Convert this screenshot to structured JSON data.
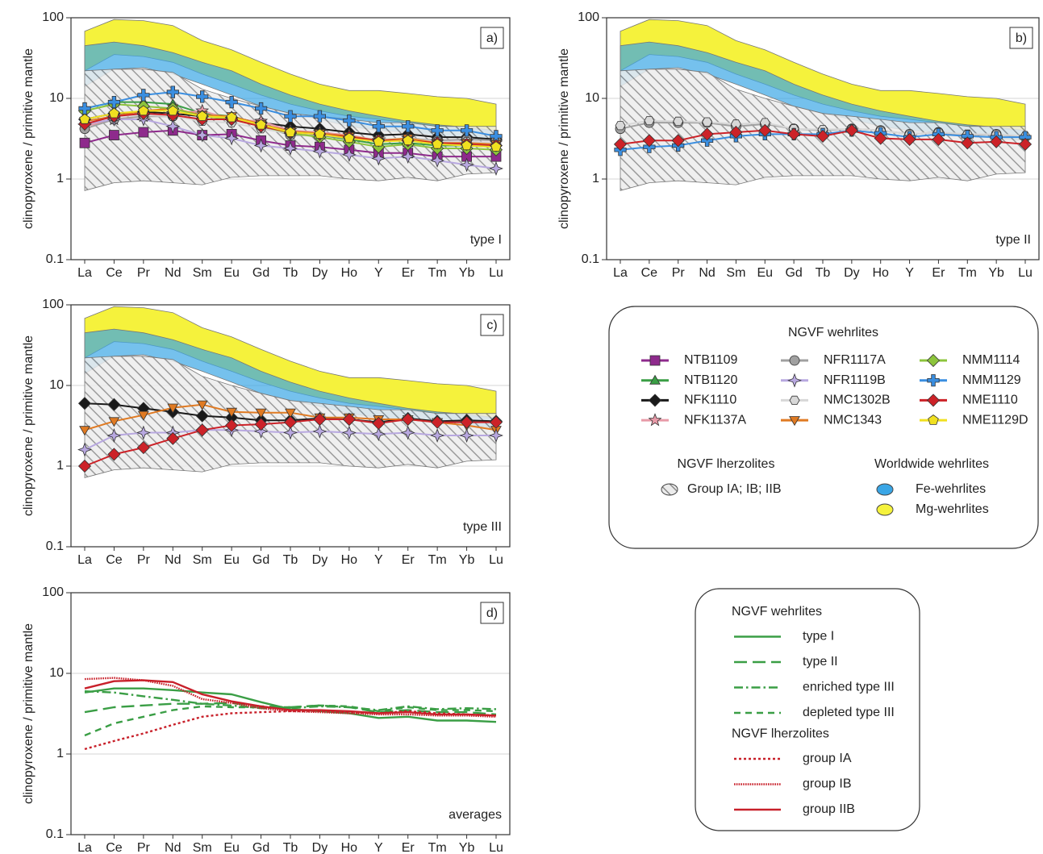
{
  "chart_data": [
    {
      "type": "line",
      "panel_label": "a)",
      "annotation": "type I",
      "ylabel": "clinopyroxene / primitive mantle",
      "categories": [
        "La",
        "Ce",
        "Pr",
        "Nd",
        "Sm",
        "Eu",
        "Gd",
        "Tb",
        "Dy",
        "Ho",
        "Y",
        "Er",
        "Tm",
        "Yb",
        "Lu"
      ],
      "log_scale": true,
      "ylim": [
        0.1,
        100
      ],
      "yticks": [
        0.1,
        1,
        10,
        100
      ],
      "grid": true,
      "areas": [
        {
          "name": "Mg-wehrlites",
          "color": "#f5f23c",
          "opacity": 1,
          "upper": [
            68,
            95,
            92,
            80,
            52,
            40,
            28,
            20,
            15,
            12.5,
            12.5,
            11.5,
            10.5,
            10,
            8.5
          ],
          "lower": [
            22,
            35,
            33,
            28,
            20,
            15,
            11,
            8.5,
            7,
            6,
            5.5,
            5,
            4.5,
            4.2,
            4
          ]
        },
        {
          "name": "Fe-wehrlites",
          "color": "#3aa6e6",
          "opacity": 0.7,
          "upper": [
            45,
            50,
            45,
            37,
            28,
            22,
            15,
            11,
            8.5,
            7,
            6,
            5.2,
            4.7,
            4.4,
            4
          ],
          "lower": [
            14,
            23,
            24,
            20,
            15,
            11,
            8,
            6.5,
            5.5,
            4.5,
            4,
            3.8,
            3.4,
            3.2,
            3
          ]
        },
        {
          "name": "Group IA; IB; IIB",
          "color": "#8a8a8a",
          "pattern": "hatch",
          "upper": [
            22,
            23,
            23,
            21,
            13,
            10,
            8,
            6.5,
            6,
            5.5,
            5,
            5,
            4.5,
            4.5,
            4.5
          ],
          "lower": [
            0.72,
            0.9,
            0.95,
            0.9,
            0.85,
            1.05,
            1.1,
            1.1,
            1.1,
            1,
            0.95,
            1.05,
            0.95,
            1.15,
            1.2
          ]
        }
      ],
      "legend": {
        "title": "NGVF wehrlites",
        "sections": [
          "NGVF lherzolites",
          "Worldwide wehrlites"
        ]
      },
      "series": [
        {
          "name": "NTB1109",
          "color": "#8e2a8c",
          "marker": "square",
          "values": [
            2.8,
            3.5,
            3.8,
            4.0,
            3.5,
            3.6,
            3.0,
            2.6,
            2.5,
            2.3,
            2.1,
            2.1,
            1.9,
            1.9,
            1.9
          ]
        },
        {
          "name": "NTB1120",
          "color": "#3a9e45",
          "marker": "triangle",
          "values": [
            7.5,
            9,
            9,
            8.5,
            6.5,
            6,
            4.8,
            3.8,
            3.5,
            3.1,
            2.7,
            2.8,
            2.6,
            2.6,
            2.5
          ]
        },
        {
          "name": "NFK1110",
          "color": "#1a1a1a",
          "marker": "diamond",
          "values": [
            5.5,
            6.5,
            6.8,
            6.5,
            6,
            5.8,
            5,
            4.5,
            4.2,
            3.8,
            3.5,
            3.6,
            3.3,
            3.3,
            3.1
          ]
        },
        {
          "name": "NFK1137A",
          "color": "#e89aa8",
          "marker": "star",
          "values": [
            4.5,
            5.5,
            6,
            6.5,
            7,
            5.5,
            5.2,
            4,
            3.8,
            3.5,
            3,
            3.2,
            2.9,
            2.9,
            2.8
          ]
        },
        {
          "name": "NFR1117A",
          "color": "#a0a0a0",
          "marker": "circle",
          "values": [
            4.2,
            5.5,
            6,
            6,
            5.5,
            5.5,
            4.5,
            3.5,
            3.5,
            3.2,
            3.0,
            3.2,
            3.0,
            3.1,
            3.0
          ]
        },
        {
          "name": "NFR1119B",
          "color": "#b8a8e0",
          "marker": "star4",
          "values": [
            4.8,
            5.5,
            5.5,
            4.5,
            3.5,
            3.2,
            2.6,
            2.4,
            2.2,
            2.0,
            1.8,
            1.9,
            1.7,
            1.5,
            1.35
          ]
        },
        {
          "name": "NMC1302B",
          "color": "#d8d8d8",
          "marker": "hexagon",
          "values": [
            5,
            6,
            6.2,
            6,
            5.2,
            5,
            4.2,
            3.7,
            3.6,
            3.3,
            3.1,
            3.2,
            2.9,
            2.9,
            2.8
          ]
        },
        {
          "name": "NMC1343",
          "color": "#e07a22",
          "marker": "triangle-down",
          "values": [
            5.2,
            6,
            7,
            7.5,
            6.2,
            6,
            4.8,
            3.9,
            3.7,
            3.4,
            3.0,
            3.2,
            2.8,
            2.8,
            2.7
          ]
        },
        {
          "name": "NMM1114",
          "color": "#8cc43c",
          "marker": "diamond",
          "values": [
            7,
            8.5,
            8,
            7.5,
            6,
            5.5,
            4.5,
            3.7,
            3.3,
            2.9,
            2.5,
            2.7,
            2.4,
            2.4,
            2.3
          ]
        },
        {
          "name": "NMM1129",
          "color": "#3a8ee0",
          "marker": "cross",
          "values": [
            7.5,
            9,
            11,
            12,
            10.5,
            9,
            7.5,
            6,
            6,
            5.3,
            4.5,
            4.5,
            4,
            4,
            3.4
          ]
        },
        {
          "name": "NME1110",
          "color": "#cc2228",
          "marker": "diamond",
          "values": [
            4.8,
            6,
            6.5,
            6.2,
            5.5,
            5.5,
            4.5,
            3.8,
            3.6,
            3.3,
            3.0,
            3.0,
            2.8,
            2.7,
            2.6
          ]
        },
        {
          "name": "NME1129D",
          "color": "#f0e020",
          "marker": "pentagon",
          "values": [
            5.5,
            6.5,
            7,
            7,
            6,
            5.8,
            4.7,
            3.8,
            3.6,
            3.2,
            2.9,
            3.0,
            2.7,
            2.6,
            2.5
          ]
        }
      ]
    },
    {
      "type": "line",
      "panel_label": "b)",
      "annotation": "type II",
      "ylabel": "clinopyroxene / primitive mantle",
      "categories": [
        "La",
        "Ce",
        "Pr",
        "Nd",
        "Sm",
        "Eu",
        "Gd",
        "Tb",
        "Dy",
        "Ho",
        "Y",
        "Er",
        "Tm",
        "Yb",
        "Lu"
      ],
      "log_scale": true,
      "ylim": [
        0.1,
        100
      ],
      "yticks": [
        0.1,
        1,
        10,
        100
      ],
      "grid": true,
      "areas": [
        {
          "name": "Mg-wehrlites",
          "color": "#f5f23c",
          "opacity": 1,
          "upper": [
            68,
            95,
            92,
            80,
            52,
            40,
            28,
            20,
            15,
            12.5,
            12.5,
            11.5,
            10.5,
            10,
            8.5
          ],
          "lower": [
            22,
            35,
            33,
            28,
            20,
            15,
            11,
            8.5,
            7,
            6,
            5.5,
            5,
            4.5,
            4.2,
            4
          ]
        },
        {
          "name": "Fe-wehrlites",
          "color": "#3aa6e6",
          "opacity": 0.7,
          "upper": [
            45,
            50,
            45,
            37,
            28,
            22,
            15,
            11,
            8.5,
            7,
            6,
            5.2,
            4.7,
            4.4,
            4
          ],
          "lower": [
            14,
            23,
            24,
            20,
            15,
            11,
            8,
            6.5,
            5.5,
            4.5,
            4,
            3.8,
            3.4,
            3.2,
            3
          ]
        },
        {
          "name": "Group IA; IB; IIB",
          "color": "#8a8a8a",
          "pattern": "hatch",
          "upper": [
            22,
            23,
            23,
            21,
            13,
            10,
            8,
            6.5,
            6,
            5.5,
            5,
            5,
            4.5,
            4.5,
            4.5
          ],
          "lower": [
            0.72,
            0.9,
            0.95,
            0.9,
            0.85,
            1.05,
            1.1,
            1.1,
            1.1,
            1,
            0.95,
            1.05,
            0.95,
            1.15,
            1.2
          ]
        }
      ],
      "series": [
        {
          "name": "NFR1117A",
          "color": "#a0a0a0",
          "marker": "circle",
          "values": [
            4.2,
            5,
            5,
            5,
            4.5,
            4.8,
            4.2,
            4,
            4.2,
            4,
            3.6,
            3.8,
            3.5,
            3.6,
            3.3
          ]
        },
        {
          "name": "NMC1302B",
          "color": "#d8d8d8",
          "marker": "hexagon",
          "values": [
            4.6,
            5.3,
            5.2,
            5.1,
            4.8,
            5,
            4.2,
            4.1,
            4.2,
            4,
            3.6,
            3.8,
            3.6,
            3.6,
            3.4
          ]
        },
        {
          "name": "NMM1129",
          "color": "#3a8ee0",
          "marker": "cross",
          "values": [
            2.3,
            2.5,
            2.6,
            3.0,
            3.4,
            3.6,
            3.6,
            3.6,
            4.0,
            3.7,
            3.3,
            3.6,
            3.4,
            3.3,
            3.3
          ]
        },
        {
          "name": "NME1110",
          "color": "#cc2228",
          "marker": "diamond",
          "values": [
            2.7,
            3,
            3,
            3.6,
            3.8,
            4,
            3.6,
            3.4,
            4,
            3.2,
            3.1,
            3.1,
            2.8,
            2.9,
            2.7
          ]
        }
      ]
    },
    {
      "type": "line",
      "panel_label": "c)",
      "annotation": "type III",
      "ylabel": "clinopyroxene / primitive mantle",
      "categories": [
        "La",
        "Ce",
        "Pr",
        "Nd",
        "Sm",
        "Eu",
        "Gd",
        "Tb",
        "Dy",
        "Ho",
        "Y",
        "Er",
        "Tm",
        "Yb",
        "Lu"
      ],
      "log_scale": true,
      "ylim": [
        0.1,
        100
      ],
      "yticks": [
        0.1,
        1,
        10,
        100
      ],
      "grid": true,
      "areas": [
        {
          "name": "Mg-wehrlites",
          "color": "#f5f23c",
          "opacity": 1,
          "upper": [
            68,
            95,
            92,
            80,
            52,
            40,
            28,
            20,
            15,
            12.5,
            12.5,
            11.5,
            10.5,
            10,
            8.5
          ],
          "lower": [
            22,
            35,
            33,
            28,
            20,
            15,
            11,
            8.5,
            7,
            6,
            5.5,
            5,
            4.5,
            4.2,
            4
          ]
        },
        {
          "name": "Fe-wehrlites",
          "color": "#3aa6e6",
          "opacity": 0.7,
          "upper": [
            45,
            50,
            45,
            37,
            28,
            22,
            15,
            11,
            8.5,
            7,
            6,
            5.2,
            4.7,
            4.4,
            4
          ],
          "lower": [
            14,
            23,
            24,
            20,
            15,
            11,
            8,
            6.5,
            5.5,
            4.5,
            4,
            3.8,
            3.4,
            3.2,
            3
          ]
        },
        {
          "name": "Group IA; IB; IIB",
          "color": "#8a8a8a",
          "pattern": "hatch",
          "upper": [
            22,
            23,
            23,
            21,
            13,
            10,
            8,
            6.5,
            6,
            5.5,
            5,
            5,
            4.5,
            4.5,
            4.5
          ],
          "lower": [
            0.72,
            0.9,
            0.95,
            0.9,
            0.85,
            1.05,
            1.1,
            1.1,
            1.1,
            1,
            0.95,
            1.05,
            0.95,
            1.15,
            1.2
          ]
        }
      ],
      "series": [
        {
          "name": "NFK1110",
          "color": "#1a1a1a",
          "marker": "diamond",
          "values": [
            6,
            5.8,
            5.2,
            4.7,
            4.2,
            4.0,
            3.7,
            3.7,
            3.9,
            3.8,
            3.5,
            3.9,
            3.6,
            3.7,
            3.6
          ]
        },
        {
          "name": "NMC1343",
          "color": "#e07a22",
          "marker": "triangle-down",
          "values": [
            2.8,
            3.6,
            4.3,
            5.3,
            5.8,
            4.7,
            4.6,
            4.6,
            4.0,
            4.0,
            3.8,
            3.8,
            3.5,
            3.2,
            2.8
          ]
        },
        {
          "name": "NFR1119B",
          "color": "#b8a8e0",
          "marker": "star4",
          "values": [
            1.6,
            2.4,
            2.6,
            2.6,
            2.8,
            2.8,
            2.7,
            2.6,
            2.7,
            2.6,
            2.5,
            2.6,
            2.4,
            2.4,
            2.4
          ]
        },
        {
          "name": "NME1110",
          "color": "#cc2228",
          "marker": "diamond",
          "values": [
            1.0,
            1.4,
            1.7,
            2.2,
            2.8,
            3.2,
            3.3,
            3.5,
            3.8,
            3.8,
            3.4,
            3.8,
            3.5,
            3.5,
            3.5
          ]
        }
      ]
    },
    {
      "type": "line",
      "panel_label": "d)",
      "annotation": "averages",
      "ylabel": "clinopyroxene / primitive mantle",
      "categories": [
        "La",
        "Ce",
        "Pr",
        "Nd",
        "Sm",
        "Eu",
        "Gd",
        "Tb",
        "Dy",
        "Ho",
        "Y",
        "Er",
        "Tm",
        "Yb",
        "Lu"
      ],
      "log_scale": true,
      "ylim": [
        0.1,
        100
      ],
      "yticks": [
        0.1,
        1,
        10,
        100
      ],
      "grid": true,
      "legend_groups": [
        {
          "title": "NGVF wehrlites",
          "color": "#3a9e45"
        },
        {
          "title": "NGVF lherzolites",
          "color": "#c8202a"
        }
      ],
      "series": [
        {
          "name": "type I",
          "color": "#3a9e45",
          "dash": "solid",
          "values": [
            5.8,
            6.5,
            6.5,
            6.2,
            5.8,
            5.5,
            4.4,
            3.6,
            3.4,
            3.2,
            2.8,
            2.9,
            2.6,
            2.6,
            2.5
          ]
        },
        {
          "name": "type II",
          "color": "#3a9e45",
          "dash": "long-dash",
          "values": [
            3.3,
            3.8,
            4,
            4.2,
            4.2,
            4.3,
            3.9,
            3.8,
            4.0,
            3.8,
            3.3,
            3.5,
            3.3,
            3.3,
            3.1
          ]
        },
        {
          "name": "enriched type III",
          "color": "#3a9e45",
          "dash": "dash-dot",
          "values": [
            6,
            5.8,
            5.2,
            4.7,
            4.2,
            4.0,
            3.7,
            3.7,
            3.9,
            3.8,
            3.5,
            3.9,
            3.6,
            3.7,
            3.6
          ]
        },
        {
          "name": "depleted type III",
          "color": "#3a9e45",
          "dash": "dash",
          "values": [
            1.7,
            2.4,
            2.9,
            3.5,
            3.9,
            3.8,
            3.8,
            3.8,
            4.0,
            3.9,
            3.4,
            3.8,
            3.5,
            3.5,
            3.4
          ]
        },
        {
          "name": "group IA",
          "color": "#c8202a",
          "dash": "dotted",
          "values": [
            1.15,
            1.45,
            1.8,
            2.3,
            2.9,
            3.2,
            3.3,
            3.4,
            3.4,
            3.3,
            3.2,
            3.4,
            3.2,
            3.1,
            3.0
          ]
        },
        {
          "name": "group IB",
          "color": "#c8202a",
          "dash": "dense-dotted",
          "values": [
            8.5,
            8.8,
            8.2,
            7.0,
            4.8,
            4.3,
            3.7,
            3.4,
            3.3,
            3.2,
            3.1,
            3.1,
            3.0,
            3.0,
            2.9
          ]
        },
        {
          "name": "group IIB",
          "color": "#c8202a",
          "dash": "solid",
          "values": [
            6.5,
            8,
            8.2,
            7.8,
            5.5,
            4.5,
            3.9,
            3.5,
            3.5,
            3.4,
            3.2,
            3.3,
            3.1,
            3.1,
            3.0
          ]
        }
      ]
    }
  ]
}
